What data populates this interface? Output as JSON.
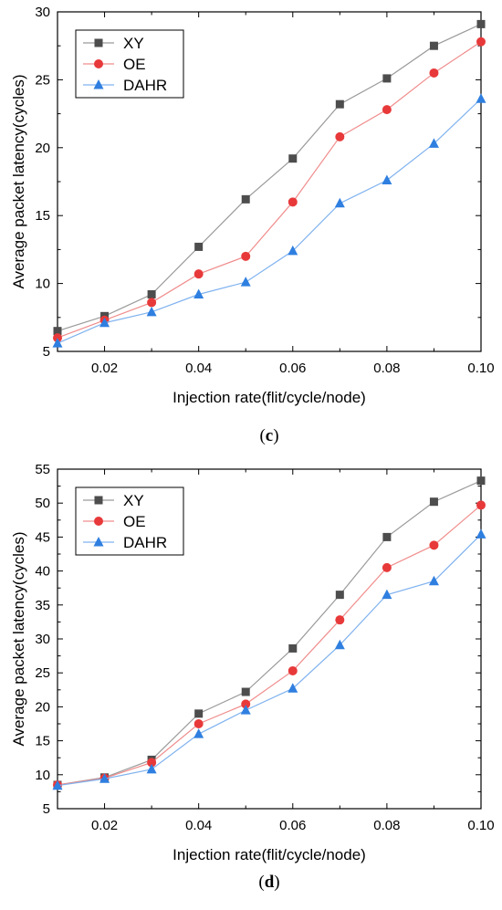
{
  "chart_data": [
    {
      "type": "line",
      "caption_prefix": "(",
      "caption_letter": "c",
      "caption_suffix": ")",
      "xlabel": "Injection rate(flit/cycle/node)",
      "ylabel": "Average packet latency(cycles)",
      "xlim": [
        0.01,
        0.1
      ],
      "ylim": [
        5,
        30
      ],
      "xticks": [
        0.02,
        0.04,
        0.06,
        0.08,
        0.1
      ],
      "xtick_labels": [
        "0.02",
        "0.04",
        "0.06",
        "0.08",
        "0.10"
      ],
      "yticks": [
        5,
        10,
        15,
        20,
        25,
        30
      ],
      "ytick_labels": [
        "5",
        "10",
        "15",
        "20",
        "25",
        "30"
      ],
      "x": [
        0.01,
        0.02,
        0.03,
        0.04,
        0.05,
        0.06,
        0.07,
        0.08,
        0.09,
        0.1
      ],
      "legend_position": "top-left",
      "grid": false,
      "series": [
        {
          "name": "XY",
          "marker": "square",
          "color": "#4d4d4d",
          "line_color": "#9a9a9a",
          "values": [
            6.5,
            7.6,
            9.2,
            12.7,
            16.2,
            19.2,
            23.2,
            25.1,
            27.5,
            29.1
          ]
        },
        {
          "name": "OE",
          "marker": "circle",
          "color": "#e8393a",
          "line_color": "#f08c8c",
          "values": [
            6.0,
            7.3,
            8.6,
            10.7,
            12.0,
            16.0,
            20.8,
            22.8,
            25.5,
            27.8
          ]
        },
        {
          "name": "DAHR",
          "marker": "triangle",
          "color": "#2f7fe0",
          "line_color": "#7fb2ef",
          "values": [
            5.6,
            7.1,
            7.9,
            9.2,
            10.1,
            12.4,
            15.9,
            17.6,
            20.3,
            23.6
          ]
        }
      ]
    },
    {
      "type": "line",
      "caption_prefix": "(",
      "caption_letter": "d",
      "caption_suffix": ")",
      "xlabel": "Injection rate(flit/cycle/node)",
      "ylabel": "Average packet latency(cycles)",
      "xlim": [
        0.01,
        0.1
      ],
      "ylim": [
        5,
        55
      ],
      "xticks": [
        0.02,
        0.04,
        0.06,
        0.08,
        0.1
      ],
      "xtick_labels": [
        "0.02",
        "0.04",
        "0.06",
        "0.08",
        "0.10"
      ],
      "yticks": [
        5,
        10,
        15,
        20,
        25,
        30,
        35,
        40,
        45,
        50,
        55
      ],
      "ytick_labels": [
        "5",
        "10",
        "15",
        "20",
        "25",
        "30",
        "35",
        "40",
        "45",
        "50",
        "55"
      ],
      "x": [
        0.01,
        0.02,
        0.03,
        0.04,
        0.05,
        0.06,
        0.07,
        0.08,
        0.09,
        0.1
      ],
      "legend_position": "top-left",
      "grid": false,
      "series": [
        {
          "name": "XY",
          "marker": "square",
          "color": "#4d4d4d",
          "line_color": "#9a9a9a",
          "values": [
            8.5,
            9.6,
            12.2,
            19.0,
            22.2,
            28.6,
            36.5,
            45.0,
            50.2,
            53.3
          ]
        },
        {
          "name": "OE",
          "marker": "circle",
          "color": "#e8393a",
          "line_color": "#f08c8c",
          "values": [
            8.5,
            9.5,
            11.8,
            17.5,
            20.4,
            25.3,
            32.8,
            40.5,
            43.8,
            49.7
          ]
        },
        {
          "name": "DAHR",
          "marker": "triangle",
          "color": "#2f7fe0",
          "line_color": "#7fb2ef",
          "values": [
            8.4,
            9.4,
            10.8,
            16.0,
            19.5,
            22.7,
            29.1,
            36.5,
            38.5,
            45.4
          ]
        }
      ]
    }
  ]
}
